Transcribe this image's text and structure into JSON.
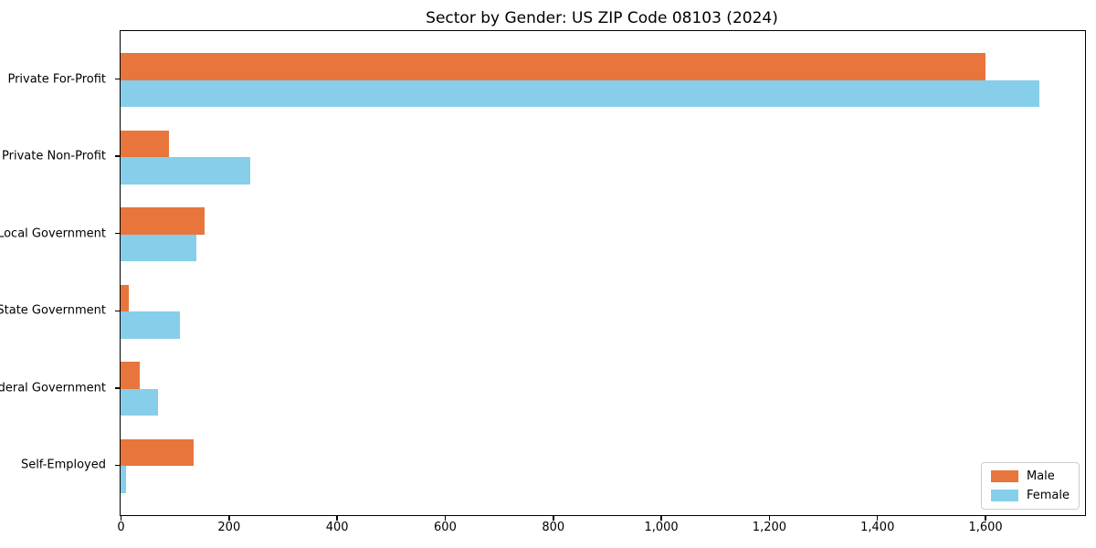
{
  "chart_data": {
    "type": "bar",
    "orientation": "horizontal",
    "title": "Sector by Gender: US ZIP Code 08103 (2024)",
    "categories": [
      "Private For-Profit",
      "Private Non-Profit",
      "Local Government",
      "State Government",
      "Federal Government",
      "Self-Employed"
    ],
    "series": [
      {
        "name": "Male",
        "color": "#e8763c",
        "values": [
          1600,
          90,
          155,
          15,
          36,
          135
        ]
      },
      {
        "name": "Female",
        "color": "#87ceeb",
        "values": [
          1700,
          240,
          140,
          110,
          70,
          10
        ]
      }
    ],
    "xlabel": "",
    "ylabel": "",
    "xlim": [
      0,
      1785
    ],
    "xticks": [
      0,
      200,
      400,
      600,
      800,
      1000,
      1200,
      1400,
      1600
    ],
    "xtick_labels": [
      "0",
      "200",
      "400",
      "600",
      "800",
      "1,000",
      "1,200",
      "1,400",
      "1,600"
    ],
    "grid": false,
    "legend": {
      "position": "lower right",
      "entries": [
        "Male",
        "Female"
      ]
    },
    "colors": {
      "background": "#ffffff",
      "spine": "#000000",
      "legend_border": "#cccccc"
    }
  }
}
